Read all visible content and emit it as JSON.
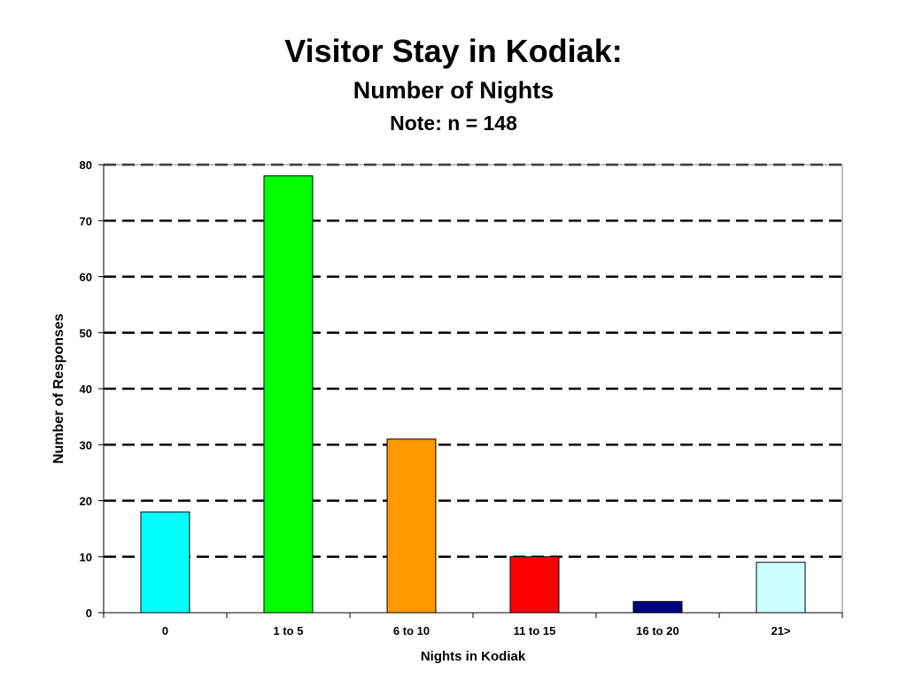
{
  "chart_data": {
    "type": "bar",
    "title": "Visitor Stay in Kodiak:",
    "subtitle": "Number of Nights",
    "note": "Note: n = 148",
    "xlabel": "Nights in Kodiak",
    "ylabel": "Number of Responses",
    "categories": [
      "0",
      "1 to 5",
      "6 to 10",
      "11 to 15",
      "16 to 20",
      "21>"
    ],
    "values": [
      18,
      78,
      31,
      10,
      2,
      9
    ],
    "bar_colors": [
      "#00ffff",
      "#00ff00",
      "#ff9900",
      "#ff0000",
      "#000080",
      "#ccffff"
    ],
    "ylim": [
      0,
      80
    ],
    "yticks": [
      "0",
      "10",
      "20",
      "30",
      "40",
      "50",
      "60",
      "70",
      "80"
    ],
    "grid": true,
    "grid_style": "dashed",
    "legend": false
  }
}
